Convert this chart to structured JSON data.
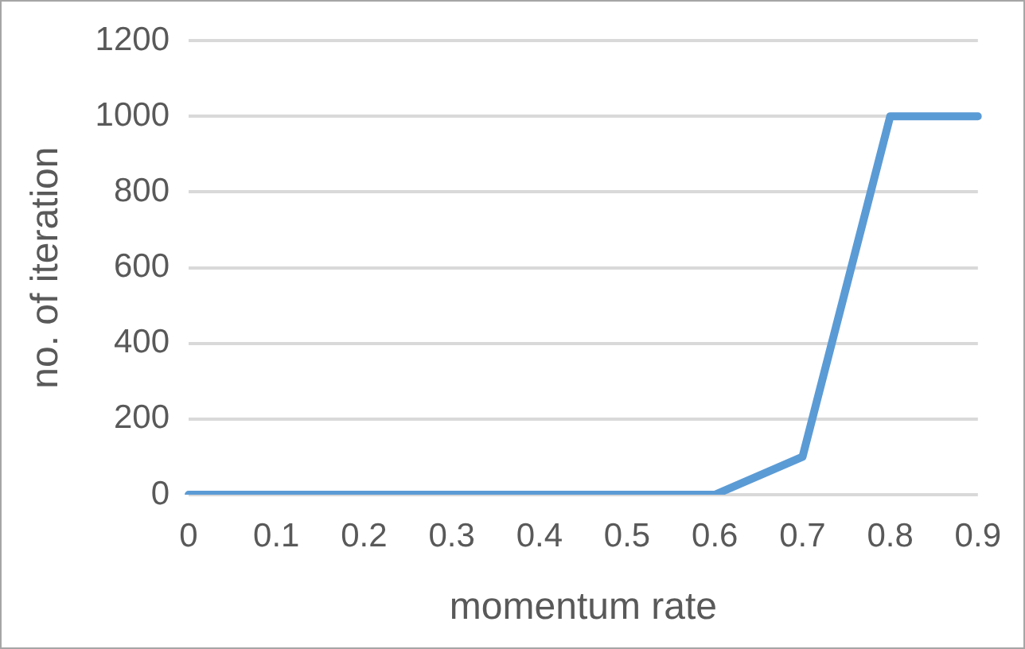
{
  "chart_data": {
    "type": "line",
    "xlabel": "momentum rate",
    "ylabel": "no. of iteration",
    "categories": [
      "0",
      "0.1",
      "0.2",
      "0.3",
      "0.4",
      "0.5",
      "0.6",
      "0.7",
      "0.8",
      "0.9"
    ],
    "series": [
      {
        "color": "#5b9bd5",
        "values": [
          0,
          0,
          0,
          0,
          0,
          0,
          0,
          100,
          1000,
          1000
        ]
      }
    ],
    "ylim": [
      0,
      1200
    ],
    "yticks": [
      0,
      200,
      400,
      600,
      800,
      1000,
      1200
    ],
    "grid": "y",
    "legend": false,
    "marker": "none",
    "line_style": "solid"
  }
}
